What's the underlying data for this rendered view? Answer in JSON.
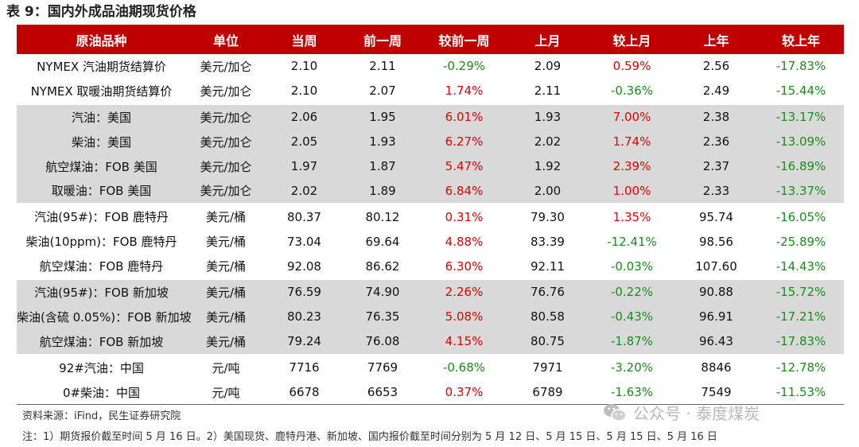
{
  "title": "表 9：国内外成品油期现货价格",
  "headers": [
    "原油品种",
    "单位",
    "当周",
    "前一周",
    "较前一周",
    "上月",
    "较上月",
    "上年",
    "较上年"
  ],
  "rows": [
    [
      "NYMEX 汽油期货结算价",
      "美元/加仑",
      "2.10",
      "2.11",
      "-0.29%",
      "2.09",
      "0.59%",
      "2.56",
      "-17.83%"
    ],
    [
      "NYMEX 取暖油期货结算价",
      "美元/加仑",
      "2.10",
      "2.07",
      "1.74%",
      "2.11",
      "-0.36%",
      "2.49",
      "-15.44%"
    ],
    [
      "汽油：美国",
      "美元/加仑",
      "2.06",
      "1.95",
      "6.01%",
      "1.93",
      "7.00%",
      "2.38",
      "-13.17%"
    ],
    [
      "柴油：美国",
      "美元/加仑",
      "2.05",
      "1.93",
      "6.27%",
      "2.02",
      "1.74%",
      "2.36",
      "-13.09%"
    ],
    [
      "航空煤油：FOB 美国",
      "美元/加仑",
      "1.97",
      "1.87",
      "5.47%",
      "1.92",
      "2.39%",
      "2.37",
      "-16.89%"
    ],
    [
      "取暖油：FOB 美国",
      "美元/加仑",
      "2.02",
      "1.89",
      "6.84%",
      "2.00",
      "1.00%",
      "2.33",
      "-13.37%"
    ],
    [
      "汽油(95#)：FOB 鹿特丹",
      "美元/桶",
      "80.37",
      "80.12",
      "0.31%",
      "79.30",
      "1.35%",
      "95.74",
      "-16.05%"
    ],
    [
      "柴油(10ppm)：FOB 鹿特丹",
      "美元/桶",
      "73.04",
      "69.64",
      "4.88%",
      "83.39",
      "-12.41%",
      "98.56",
      "-25.89%"
    ],
    [
      "航空煤油：FOB 鹿特丹",
      "美元/桶",
      "92.08",
      "86.62",
      "6.30%",
      "92.11",
      "-0.03%",
      "107.60",
      "-14.43%"
    ],
    [
      "汽油(95#)：FOB 新加坡",
      "美元/桶",
      "76.59",
      "74.90",
      "2.26%",
      "76.76",
      "-0.22%",
      "90.88",
      "-15.72%"
    ],
    [
      "柴油(含硫 0.05%)：FOB 新加坡",
      "美元/桶",
      "80.23",
      "76.35",
      "5.08%",
      "80.58",
      "-0.43%",
      "96.91",
      "-17.21%"
    ],
    [
      "航空煤油：FOB 新加坡",
      "美元/桶",
      "79.24",
      "76.08",
      "4.15%",
      "80.75",
      "-1.87%",
      "96.43",
      "-17.83%"
    ],
    [
      "92#汽油：中国",
      "元/吨",
      "7716",
      "7769",
      "-0.68%",
      "7971",
      "-3.20%",
      "8846",
      "-12.78%"
    ],
    [
      "0#柴油：中国",
      "元/吨",
      "6678",
      "6653",
      "0.37%",
      "6789",
      "-1.63%",
      "7549",
      "-11.53%"
    ]
  ],
  "source": "资料来源：iFind，民生证券研究院",
  "note": "注：1）期货报价截至时间 5 月 16 日。2）美国现货、鹿特丹港、新加坡、国内报价截至时间分别为 5 月 12 日、5 月 15 日、5 月 15 日、5 月 16 日",
  "watermark": "公众号 · 泰度煤炭",
  "colors": {
    "header_bg": "#c00000",
    "band_bg": "#d9d9d9",
    "up": "#e00000",
    "down": "#1a8c1a"
  },
  "watermark_icon": "wechat-icon"
}
